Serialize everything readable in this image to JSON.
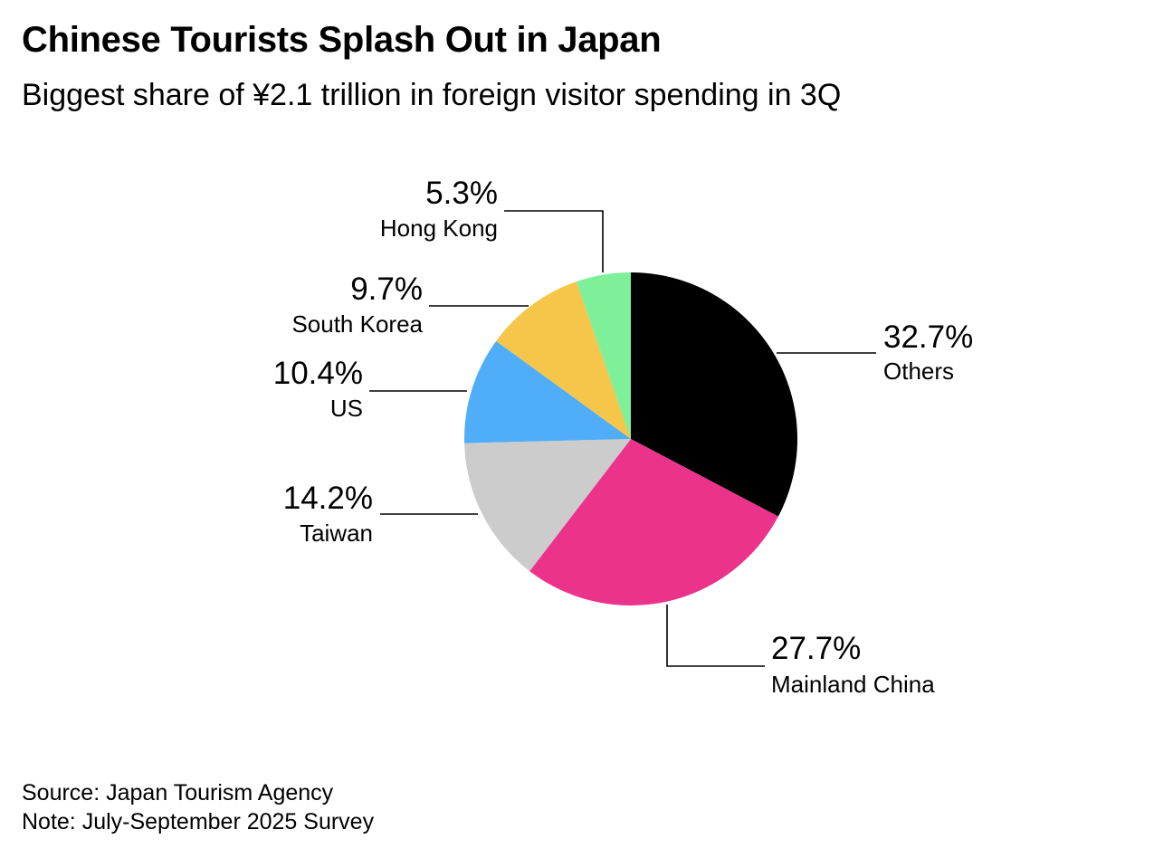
{
  "chart_data": {
    "type": "pie",
    "title": "Chinese Tourists Splash Out in Japan",
    "subtitle": "Biggest share of ¥2.1 trillion in foreign visitor spending in 3Q",
    "slices": [
      {
        "label": "Others",
        "value": 32.7,
        "value_label": "32.7%",
        "color": "#000000"
      },
      {
        "label": "Mainland China",
        "value": 27.7,
        "value_label": "27.7%",
        "color": "#EC338C"
      },
      {
        "label": "Taiwan",
        "value": 14.2,
        "value_label": "14.2%",
        "color": "#CCCCCC"
      },
      {
        "label": "US",
        "value": 10.4,
        "value_label": "10.4%",
        "color": "#4FAEF7"
      },
      {
        "label": "South Korea",
        "value": 9.7,
        "value_label": "9.7%",
        "color": "#F5C64A"
      },
      {
        "label": "Hong Kong",
        "value": 5.3,
        "value_label": "5.3%",
        "color": "#7EF09A"
      }
    ],
    "start": "12 o'clock",
    "direction": "clockwise"
  },
  "footer": {
    "source": "Source: Japan Tourism Agency",
    "note": "Note: July-September 2025 Survey"
  }
}
